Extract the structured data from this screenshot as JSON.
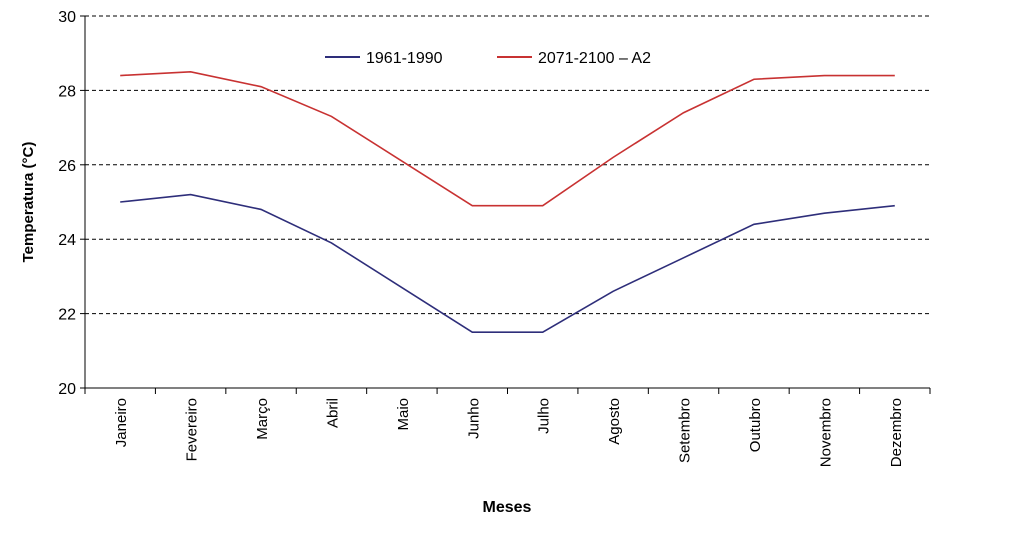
{
  "chart_data": {
    "type": "line",
    "title": "",
    "xlabel": "Meses",
    "ylabel": "Temperatura (°C)",
    "ylim": [
      20,
      30
    ],
    "yticks": [
      "20",
      "22",
      "24",
      "26",
      "28",
      "30"
    ],
    "grid": "horizontal dashed",
    "legend_placement": "top-center",
    "categories": [
      "Janeiro",
      "Fevereiro",
      "Março",
      "Abril",
      "Maio",
      "Junho",
      "Julho",
      "Agosto",
      "Setembro",
      "Outubro",
      "Novembro",
      "Dezembro"
    ],
    "series": [
      {
        "name": "1961-1990",
        "color": "#2e2e7a",
        "values": [
          25.0,
          25.2,
          24.8,
          23.9,
          22.7,
          21.5,
          21.5,
          22.6,
          23.5,
          24.4,
          24.7,
          24.9
        ]
      },
      {
        "name": "2071-2100 – A2",
        "color": "#c83232",
        "values": [
          28.4,
          28.5,
          28.1,
          27.3,
          26.1,
          24.9,
          24.9,
          26.2,
          27.4,
          28.3,
          28.4,
          28.4
        ]
      }
    ]
  }
}
